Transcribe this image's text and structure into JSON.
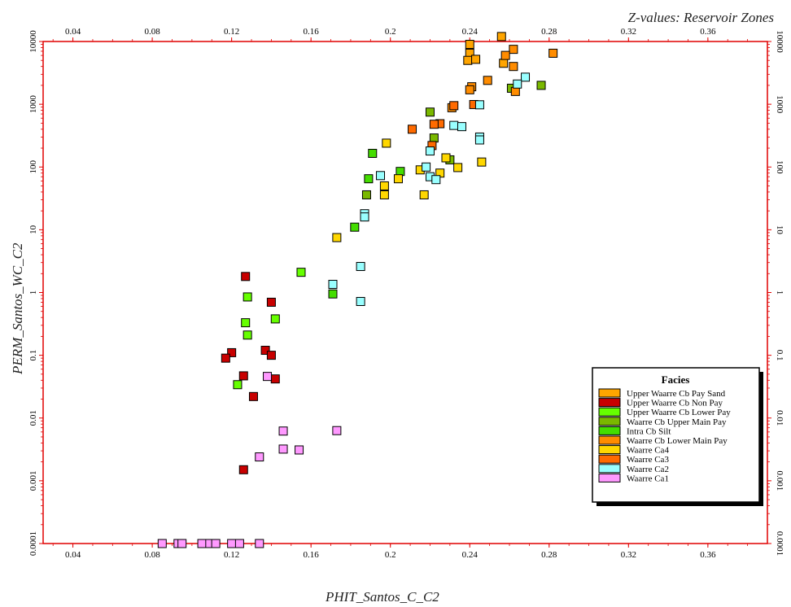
{
  "chart_data": {
    "type": "scatter",
    "title": "Z-values: Reservoir Zones",
    "xlabel": "PHIT_Santos_C_C2",
    "ylabel": "PERM_Santos_WC_C2",
    "xlim": [
      0.025,
      0.39
    ],
    "ylim": [
      0.0001,
      10000
    ],
    "y_scale": "log",
    "x_ticks": [
      "0.04",
      "0.08",
      "0.12",
      "0.16",
      "0.2",
      "0.24",
      "0.28",
      "0.32",
      "0.36"
    ],
    "y_ticks": [
      "0.0001",
      "0.001",
      "0.01",
      "0.1",
      "1",
      "10",
      "100",
      "1000",
      "10000"
    ],
    "grid": false,
    "legend": {
      "title": "Facies",
      "position": "bottom-right"
    },
    "series": [
      {
        "name": "Upper Waarre Cb Pay Sand",
        "color": "#ffa500",
        "points": [
          [
            0.24,
            9000
          ],
          [
            0.256,
            12000
          ],
          [
            0.24,
            6500
          ],
          [
            0.239,
            5000
          ],
          [
            0.243,
            5200
          ],
          [
            0.257,
            4500
          ]
        ]
      },
      {
        "name": "Upper Waarre Cb Non Pay",
        "color": "#c80000",
        "points": [
          [
            0.127,
            1.8
          ],
          [
            0.14,
            0.7
          ],
          [
            0.12,
            0.11
          ],
          [
            0.137,
            0.12
          ],
          [
            0.117,
            0.09
          ],
          [
            0.14,
            0.1
          ],
          [
            0.126,
            0.047
          ],
          [
            0.142,
            0.042
          ],
          [
            0.131,
            0.022
          ],
          [
            0.126,
            0.0015
          ]
        ]
      },
      {
        "name": "Upper Waarre Cb Lower Pay",
        "color": "#66ff00",
        "points": [
          [
            0.155,
            2.1
          ],
          [
            0.128,
            0.85
          ],
          [
            0.142,
            0.38
          ],
          [
            0.127,
            0.33
          ],
          [
            0.128,
            0.21
          ],
          [
            0.123,
            0.034
          ]
        ]
      },
      {
        "name": "Waarre Cb Upper Main Pay",
        "color": "#7ab800",
        "points": [
          [
            0.22,
            750
          ],
          [
            0.261,
            1800
          ],
          [
            0.276,
            2000
          ],
          [
            0.222,
            290
          ],
          [
            0.23,
            130
          ],
          [
            0.188,
            36
          ]
        ]
      },
      {
        "name": "Intra Cb Silt",
        "color": "#44dd00",
        "points": [
          [
            0.191,
            165
          ],
          [
            0.205,
            85
          ],
          [
            0.189,
            65
          ],
          [
            0.182,
            11
          ],
          [
            0.171,
            0.95
          ]
        ]
      },
      {
        "name": "Waarre Cb Lower Main Pay",
        "color": "#ff8c00",
        "points": [
          [
            0.262,
            7500
          ],
          [
            0.282,
            6500
          ],
          [
            0.258,
            6000
          ],
          [
            0.262,
            4000
          ],
          [
            0.249,
            2400
          ],
          [
            0.241,
            1900
          ],
          [
            0.24,
            1700
          ],
          [
            0.263,
            1600
          ],
          [
            0.231,
            880
          ]
        ]
      },
      {
        "name": "Waarre Ca4",
        "color": "#ffd700",
        "points": [
          [
            0.198,
            240
          ],
          [
            0.228,
            140
          ],
          [
            0.246,
            120
          ],
          [
            0.234,
            98
          ],
          [
            0.215,
            90
          ],
          [
            0.225,
            80
          ],
          [
            0.204,
            65
          ],
          [
            0.197,
            50
          ],
          [
            0.197,
            36
          ],
          [
            0.217,
            36
          ],
          [
            0.173,
            7.5
          ]
        ]
      },
      {
        "name": "Waarre Ca3",
        "color": "#ff6a00",
        "points": [
          [
            0.225,
            490
          ],
          [
            0.222,
            480
          ],
          [
            0.211,
            400
          ],
          [
            0.221,
            220
          ],
          [
            0.242,
            990
          ],
          [
            0.232,
            950
          ]
        ]
      },
      {
        "name": "Waarre Ca2",
        "color": "#99ffff",
        "points": [
          [
            0.268,
            2700
          ],
          [
            0.264,
            2100
          ],
          [
            0.245,
            980
          ],
          [
            0.232,
            460
          ],
          [
            0.236,
            440
          ],
          [
            0.245,
            300
          ],
          [
            0.245,
            270
          ],
          [
            0.22,
            180
          ],
          [
            0.218,
            100
          ],
          [
            0.195,
            73
          ],
          [
            0.22,
            70
          ],
          [
            0.223,
            63
          ],
          [
            0.187,
            18
          ],
          [
            0.187,
            16
          ],
          [
            0.185,
            2.6
          ],
          [
            0.171,
            1.35
          ],
          [
            0.185,
            0.72
          ]
        ]
      },
      {
        "name": "Waarre Ca1",
        "color": "#ff99ff",
        "points": [
          [
            0.138,
            0.046
          ],
          [
            0.146,
            0.0062
          ],
          [
            0.173,
            0.0063
          ],
          [
            0.146,
            0.0032
          ],
          [
            0.154,
            0.0031
          ],
          [
            0.134,
            0.0024
          ],
          [
            0.085,
            0.0001
          ],
          [
            0.093,
            0.0001
          ],
          [
            0.095,
            0.0001
          ],
          [
            0.105,
            0.0001
          ],
          [
            0.109,
            0.0001
          ],
          [
            0.112,
            0.0001
          ],
          [
            0.12,
            0.0001
          ],
          [
            0.124,
            0.0001
          ],
          [
            0.134,
            0.0001
          ]
        ]
      }
    ]
  }
}
